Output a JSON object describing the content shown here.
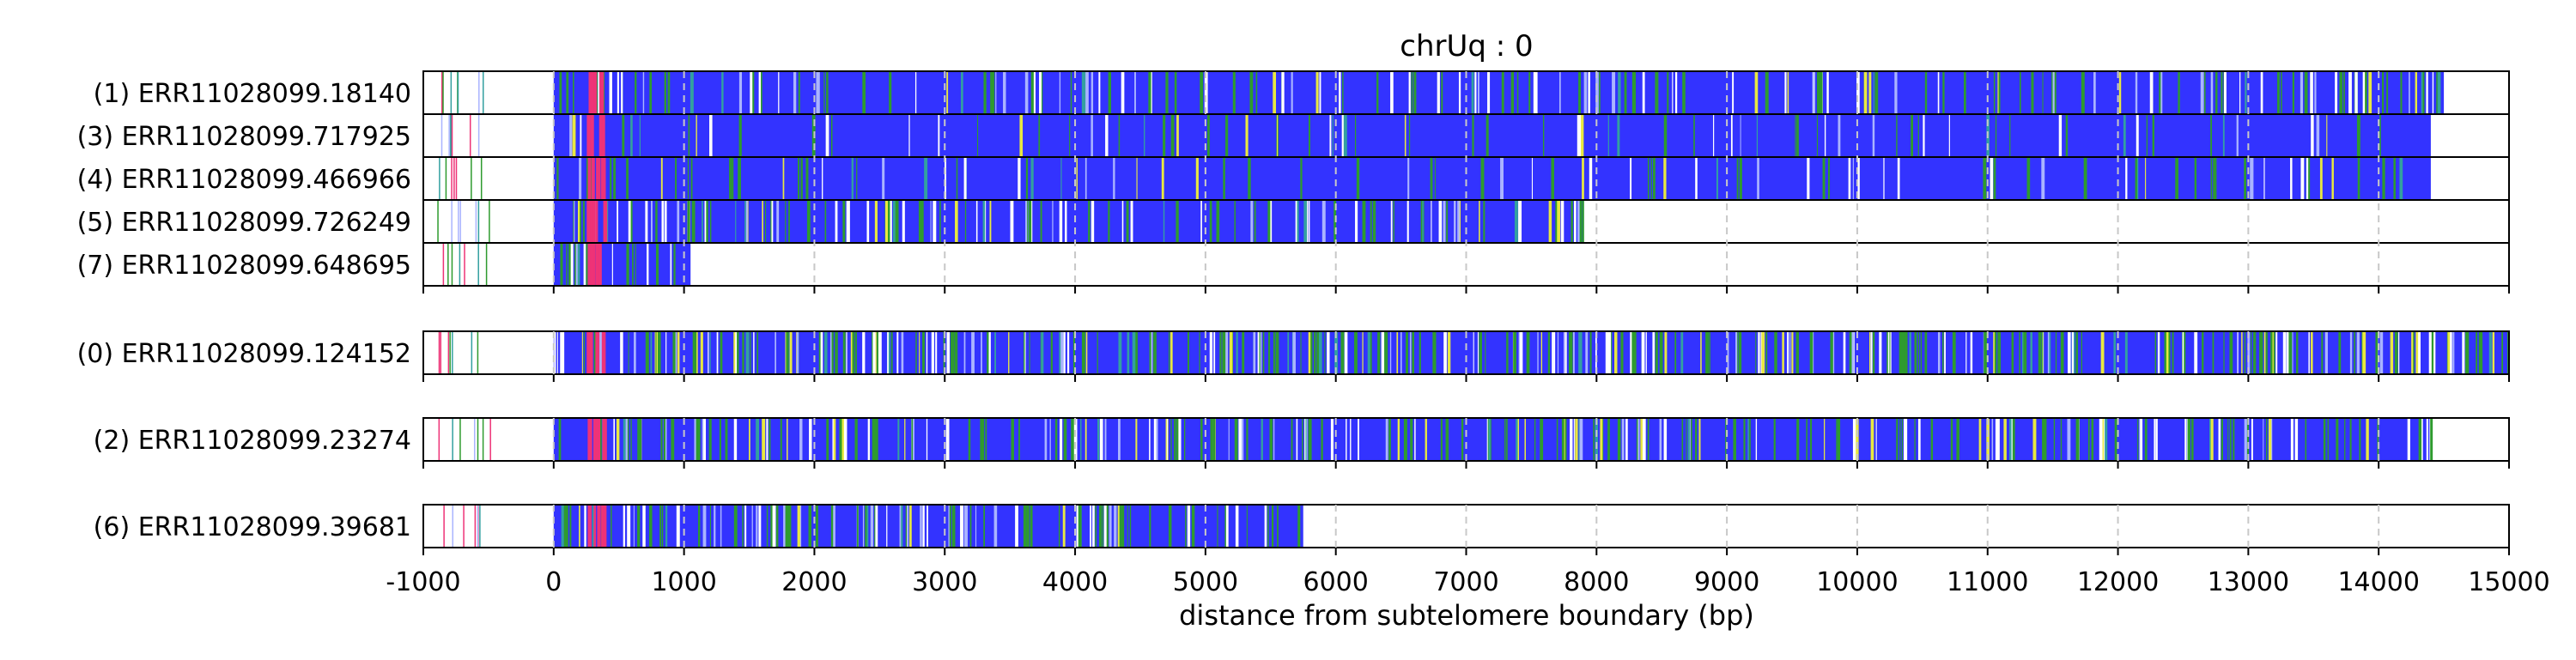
{
  "chart_data": {
    "type": "bar",
    "title": "chrUq : 0",
    "xlabel": "distance from subtelomere boundary (bp)",
    "xlim": [
      -1000,
      15000
    ],
    "xticks": [
      -1000,
      0,
      1000,
      2000,
      3000,
      4000,
      5000,
      6000,
      7000,
      8000,
      9000,
      10000,
      11000,
      12000,
      13000,
      14000,
      15000
    ],
    "xtick_labels": [
      "-1000",
      "0",
      "1000",
      "2000",
      "3000",
      "4000",
      "5000",
      "6000",
      "7000",
      "8000",
      "9000",
      "10000",
      "11000",
      "12000",
      "13000",
      "14000",
      "15000"
    ],
    "grid": "vertical dashed at ticks",
    "colors": {
      "base": "#3333ff",
      "green": "#2e9b2e",
      "yellow": "#e8e840",
      "white": "#ffffff",
      "pink": "#ee3377",
      "light": "#aab4ff",
      "teal": "#33a0a0"
    },
    "groups": [
      {
        "reads": [
          {
            "label": "(1) ERR11028099.18140",
            "start": 0,
            "end": 14500,
            "density": 0.35,
            "seed": 11
          },
          {
            "label": "(3) ERR11028099.717925",
            "start": 0,
            "end": 14400,
            "density": 0.15,
            "seed": 23
          },
          {
            "label": "(4) ERR11028099.466966",
            "start": 0,
            "end": 14400,
            "density": 0.18,
            "seed": 37
          },
          {
            "label": "(5) ERR11028099.726249",
            "start": 0,
            "end": 7900,
            "density": 0.45,
            "seed": 41
          },
          {
            "label": "(7) ERR11028099.648695",
            "start": 0,
            "end": 1050,
            "density": 0.5,
            "seed": 53
          }
        ]
      },
      {
        "reads": [
          {
            "label": "(0) ERR11028099.124152",
            "start": 0,
            "end": 15000,
            "density": 0.7,
            "seed": 67
          }
        ]
      },
      {
        "reads": [
          {
            "label": "(2) ERR11028099.23274",
            "start": 0,
            "end": 14400,
            "density": 0.5,
            "seed": 79
          }
        ]
      },
      {
        "reads": [
          {
            "label": "(6) ERR11028099.39681",
            "start": 0,
            "end": 5750,
            "density": 0.55,
            "seed": 83
          }
        ]
      }
    ]
  }
}
